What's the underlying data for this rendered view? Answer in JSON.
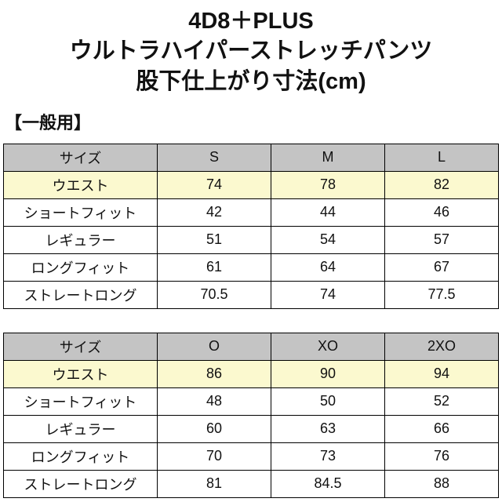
{
  "page": {
    "title_lines": [
      "4D8＋PLUS",
      "ウルトラハイパーストレッチパンツ",
      "股下仕上がり寸法(cm)"
    ],
    "section_label": "【一般用】"
  },
  "colors": {
    "header_bg": "#c4c4c4",
    "highlight_bg": "#fbf9cf",
    "border": "#000000",
    "text": "#111111",
    "background": "#ffffff"
  },
  "tables": [
    {
      "type": "table",
      "headers": [
        "サイズ",
        "S",
        "M",
        "L"
      ],
      "rows": [
        {
          "label": "ウエスト",
          "values": [
            "74",
            "78",
            "82"
          ],
          "highlight": true
        },
        {
          "label": "ショートフィット",
          "values": [
            "42",
            "44",
            "46"
          ],
          "highlight": false
        },
        {
          "label": "レギュラー",
          "values": [
            "51",
            "54",
            "57"
          ],
          "highlight": false
        },
        {
          "label": "ロングフィット",
          "values": [
            "61",
            "64",
            "67"
          ],
          "highlight": false
        },
        {
          "label": "ストレートロング",
          "values": [
            "70.5",
            "74",
            "77.5"
          ],
          "highlight": false
        }
      ]
    },
    {
      "type": "table",
      "headers": [
        "サイズ",
        "O",
        "XO",
        "2XO"
      ],
      "rows": [
        {
          "label": "ウエスト",
          "values": [
            "86",
            "90",
            "94"
          ],
          "highlight": true
        },
        {
          "label": "ショートフィット",
          "values": [
            "48",
            "50",
            "52"
          ],
          "highlight": false
        },
        {
          "label": "レギュラー",
          "values": [
            "60",
            "63",
            "66"
          ],
          "highlight": false
        },
        {
          "label": "ロングフィット",
          "values": [
            "70",
            "73",
            "76"
          ],
          "highlight": false
        },
        {
          "label": "ストレートロング",
          "values": [
            "81",
            "84.5",
            "88"
          ],
          "highlight": false
        }
      ]
    }
  ]
}
